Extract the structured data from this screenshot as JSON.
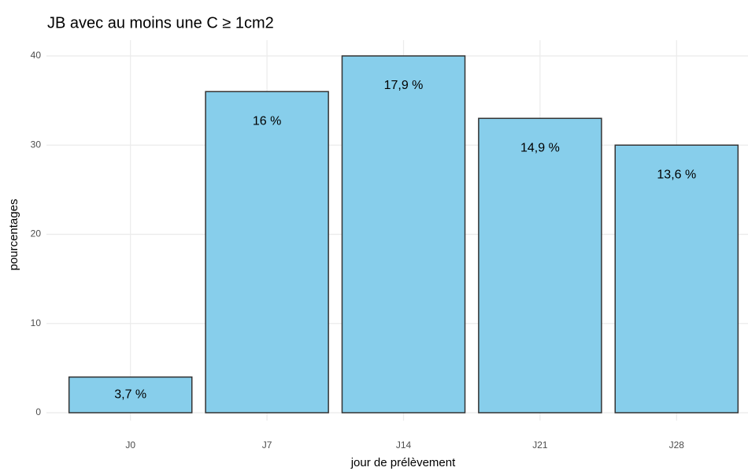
{
  "chart_data": {
    "type": "bar",
    "title": "JB avec au moins une C ≥ 1cm2",
    "xlabel": "jour de prélèvement",
    "ylabel": "pourcentages",
    "categories": [
      "J0",
      "J7",
      "J14",
      "J21",
      "J28"
    ],
    "values": [
      4,
      36,
      40,
      33,
      30
    ],
    "bar_labels": [
      "3,7 %",
      "16 %",
      "17,9 %",
      "14,9 %",
      "13,6 %"
    ],
    "color": "#87ceeb",
    "edge_color": "#333333",
    "ylim": [
      0,
      40
    ],
    "yticks": [
      0,
      10,
      20,
      30,
      40
    ],
    "grid": true
  }
}
